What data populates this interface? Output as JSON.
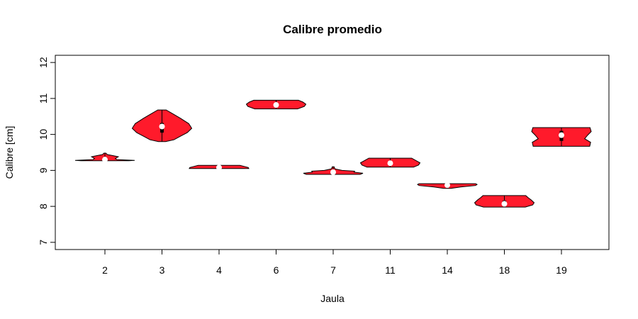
{
  "chart_data": {
    "type": "violin",
    "title": "Calibre promedio",
    "xlabel": "Jaula",
    "ylabel": "Calibre [cm]",
    "ylim": [
      6.8,
      12.2
    ],
    "yticks": [
      7,
      8,
      9,
      10,
      11,
      12
    ],
    "colors": {
      "fill": "#ff1a2b",
      "median": "#ffffff",
      "box": "#000000"
    },
    "groups": [
      {
        "label": "2",
        "min": 9.27,
        "q1": 9.28,
        "median": 9.3,
        "q3": 9.32,
        "max": 9.48,
        "profile": [
          [
            9.27,
            0.8
          ],
          [
            9.28,
            1.0
          ],
          [
            9.3,
            0.4
          ],
          [
            9.33,
            0.35
          ],
          [
            9.38,
            0.45
          ],
          [
            9.41,
            0.28
          ],
          [
            9.44,
            0.08
          ],
          [
            9.48,
            0.03
          ]
        ]
      },
      {
        "label": "3",
        "min": 9.8,
        "q1": 10.05,
        "median": 10.22,
        "q3": 10.32,
        "max": 10.68,
        "profile": [
          [
            9.8,
            0.12
          ],
          [
            9.85,
            0.4
          ],
          [
            9.95,
            0.62
          ],
          [
            10.05,
            0.85
          ],
          [
            10.17,
            1.0
          ],
          [
            10.3,
            0.9
          ],
          [
            10.45,
            0.62
          ],
          [
            10.58,
            0.35
          ],
          [
            10.68,
            0.14
          ]
        ]
      },
      {
        "label": "4",
        "min": 9.05,
        "q1": 9.07,
        "median": 9.08,
        "q3": 9.1,
        "max": 9.14,
        "profile": [
          [
            9.05,
            1.0
          ],
          [
            9.08,
            0.98
          ],
          [
            9.11,
            0.85
          ],
          [
            9.14,
            0.7
          ]
        ]
      },
      {
        "label": "6",
        "min": 10.71,
        "q1": 10.78,
        "median": 10.82,
        "q3": 10.86,
        "max": 10.95,
        "profile": [
          [
            10.71,
            0.72
          ],
          [
            10.78,
            0.95
          ],
          [
            10.84,
            1.0
          ],
          [
            10.9,
            0.9
          ],
          [
            10.95,
            0.75
          ]
        ]
      },
      {
        "label": "7",
        "min": 8.89,
        "q1": 8.92,
        "median": 8.95,
        "q3": 9.0,
        "max": 9.1,
        "profile": [
          [
            8.89,
            0.9
          ],
          [
            8.92,
            1.0
          ],
          [
            8.95,
            0.7
          ],
          [
            8.98,
            0.72
          ],
          [
            9.0,
            0.3
          ],
          [
            9.04,
            0.06
          ],
          [
            9.1,
            0.03
          ]
        ]
      },
      {
        "label": "11",
        "min": 9.09,
        "q1": 9.15,
        "median": 9.2,
        "q3": 9.25,
        "max": 9.34,
        "profile": [
          [
            9.09,
            0.78
          ],
          [
            9.15,
            0.95
          ],
          [
            9.21,
            1.0
          ],
          [
            9.28,
            0.85
          ],
          [
            9.34,
            0.72
          ]
        ]
      },
      {
        "label": "14",
        "min": 8.5,
        "q1": 8.56,
        "median": 8.59,
        "q3": 8.61,
        "max": 8.63,
        "profile": [
          [
            8.5,
            0.12
          ],
          [
            8.54,
            0.45
          ],
          [
            8.58,
            0.95
          ],
          [
            8.61,
            1.0
          ],
          [
            8.63,
            0.95
          ]
        ]
      },
      {
        "label": "18",
        "min": 7.98,
        "q1": 8.02,
        "median": 8.07,
        "q3": 8.16,
        "max": 8.3,
        "profile": [
          [
            7.98,
            0.7
          ],
          [
            8.04,
            0.95
          ],
          [
            8.1,
            1.0
          ],
          [
            8.18,
            0.9
          ],
          [
            8.24,
            0.8
          ],
          [
            8.3,
            0.72
          ]
        ]
      },
      {
        "label": "19",
        "min": 9.67,
        "q1": 9.82,
        "median": 9.98,
        "q3": 10.1,
        "max": 10.19,
        "profile": [
          [
            9.67,
            0.95
          ],
          [
            9.78,
            0.98
          ],
          [
            9.88,
            0.78
          ],
          [
            9.98,
            0.88
          ],
          [
            10.08,
            1.0
          ],
          [
            10.19,
            0.96
          ]
        ]
      }
    ]
  }
}
